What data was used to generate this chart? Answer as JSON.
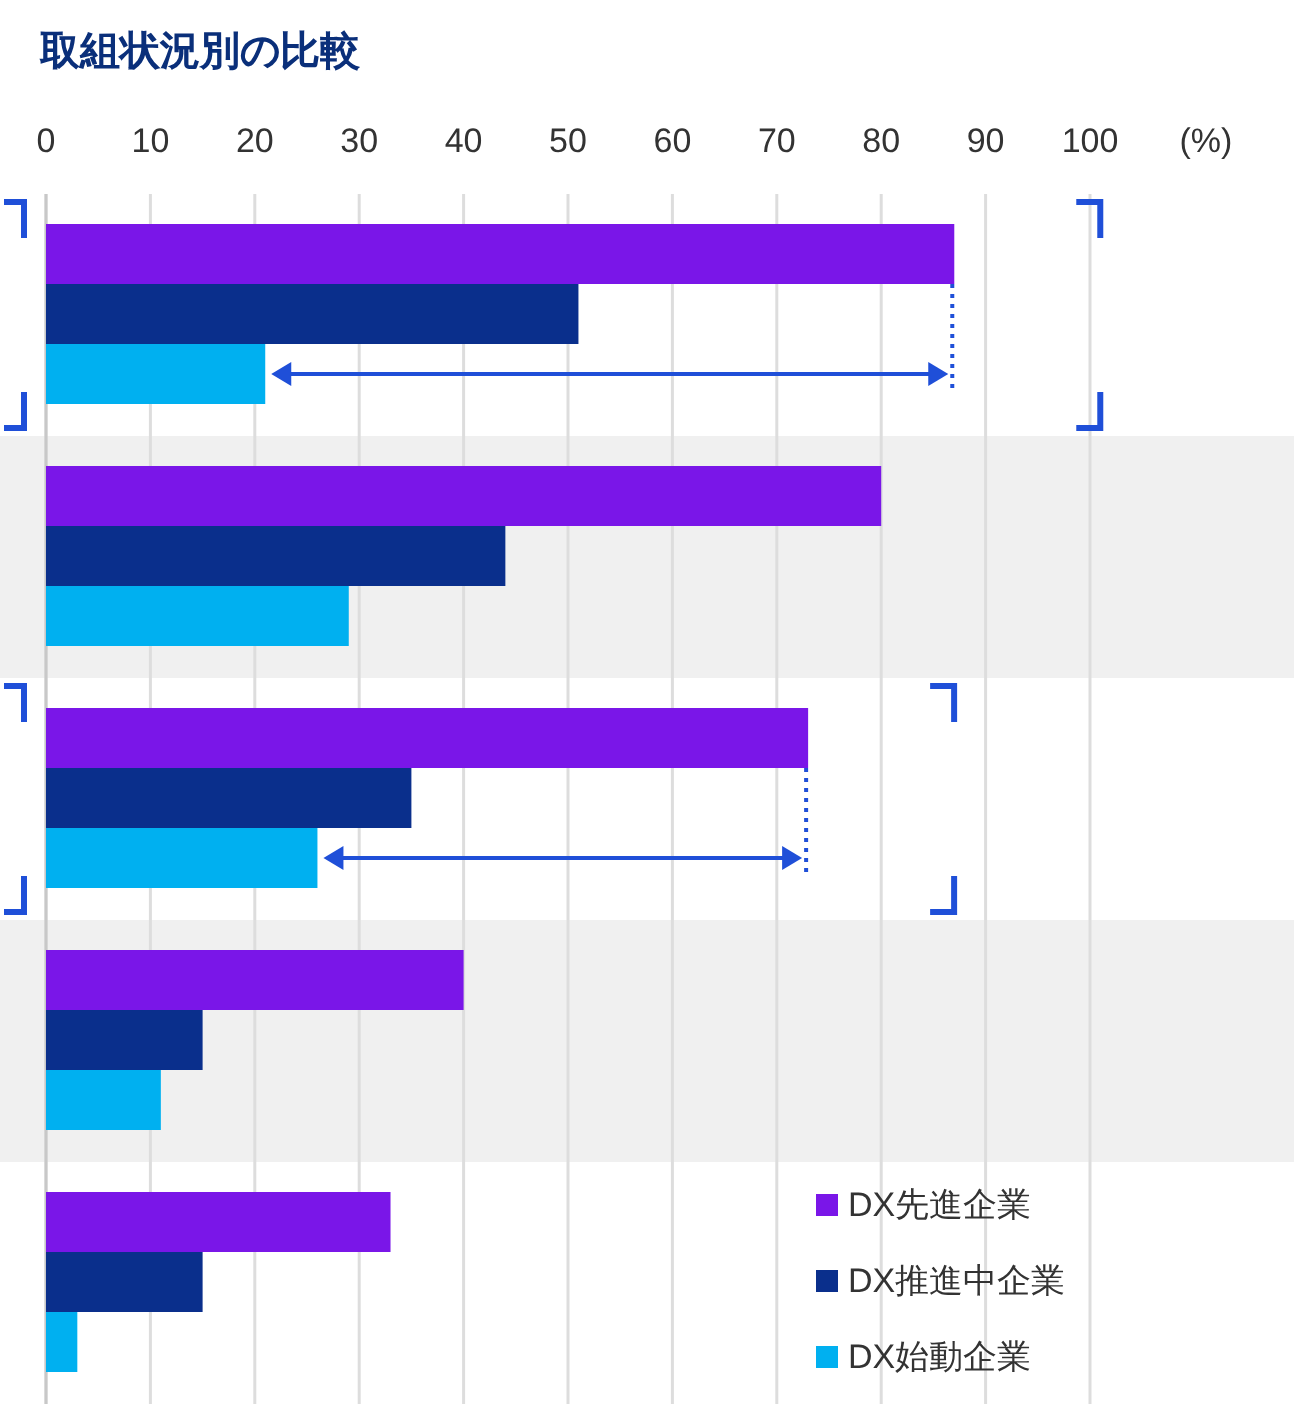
{
  "chart_data": {
    "type": "bar",
    "orientation": "horizontal",
    "title": "取組状況別の比較",
    "xlabel": "(%)",
    "categories": [
      null,
      null,
      null,
      null,
      null
    ],
    "series": [
      {
        "name": "DX先進企業",
        "color": "#7a16e8",
        "values": [
          87,
          80,
          73,
          40,
          33
        ]
      },
      {
        "name": "DX推進中企業",
        "color": "#0a2f8c",
        "values": [
          51,
          44,
          35,
          15,
          15
        ]
      },
      {
        "name": "DX始動企業",
        "color": "#00b0f0",
        "values": [
          21,
          29,
          26,
          11,
          3
        ]
      }
    ],
    "xlim": [
      0,
      100
    ],
    "xticks": [
      0,
      10,
      20,
      30,
      40,
      50,
      60,
      70,
      80,
      90,
      100
    ],
    "grid": "x",
    "legend": "bottom right"
  }
}
